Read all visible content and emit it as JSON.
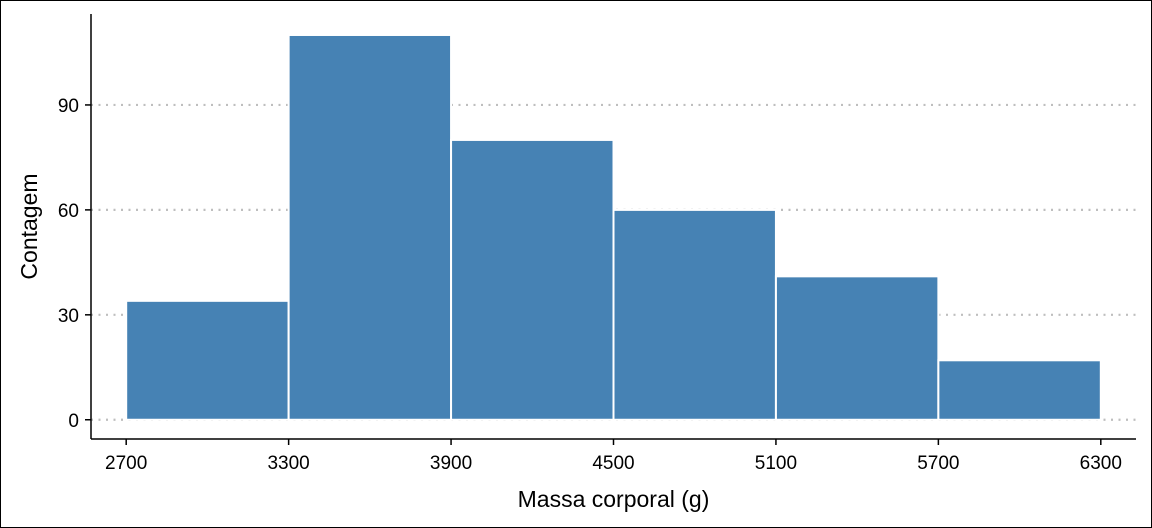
{
  "chart_data": {
    "type": "bar",
    "variant": "histogram",
    "title": "",
    "xlabel": "Massa corporal (g)",
    "ylabel": "Contagem",
    "bins": [
      {
        "start": 2700,
        "end": 3300,
        "count": 34
      },
      {
        "start": 3300,
        "end": 3900,
        "count": 110
      },
      {
        "start": 3900,
        "end": 4500,
        "count": 80
      },
      {
        "start": 4500,
        "end": 5100,
        "count": 60
      },
      {
        "start": 5100,
        "end": 5700,
        "count": 41
      },
      {
        "start": 5700,
        "end": 6300,
        "count": 17
      }
    ],
    "x_ticks": [
      2700,
      3300,
      3900,
      4500,
      5100,
      5700,
      6300
    ],
    "y_ticks": [
      0,
      30,
      60,
      90
    ],
    "xlim": [
      2570,
      6430
    ],
    "ylim": [
      -5.5,
      116
    ],
    "grid": {
      "horizontal": true,
      "vertical": false,
      "style": "dotted"
    },
    "legend": "none",
    "colors": {
      "bar": "#4682b4",
      "bar_edge": "#ffffff",
      "grid": "#bebebe",
      "axis": "#000000"
    }
  }
}
